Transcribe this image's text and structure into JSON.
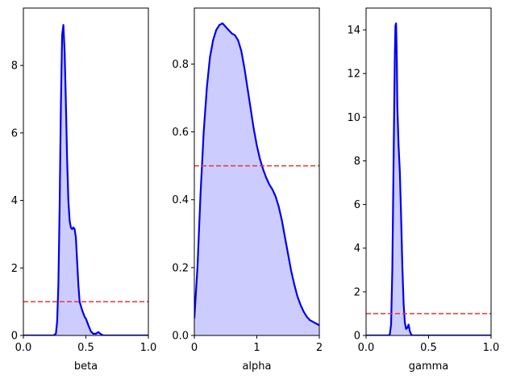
{
  "chart_data": [
    {
      "type": "area",
      "xlabel": "beta",
      "ylabel": "",
      "xlim": [
        0,
        1
      ],
      "ylim": [
        0,
        9.7
      ],
      "xticks": [
        0.0,
        0.5,
        1.0
      ],
      "xtick_labels": [
        "0.0",
        "0.5",
        "1.0"
      ],
      "yticks": [
        0,
        2,
        4,
        6,
        8
      ],
      "ytick_labels": [
        "0",
        "2",
        "4",
        "6",
        "8"
      ],
      "grid": false,
      "reference_line": 1.0,
      "series": [
        {
          "x": [
            0.0,
            0.2,
            0.24,
            0.26,
            0.27,
            0.28,
            0.29,
            0.3,
            0.31,
            0.32,
            0.33,
            0.34,
            0.35,
            0.36,
            0.37,
            0.38,
            0.39,
            0.4,
            0.41,
            0.42,
            0.43,
            0.44,
            0.45,
            0.47,
            0.49,
            0.5,
            0.52,
            0.54,
            0.56,
            0.58,
            0.6,
            0.62,
            0.64,
            1.0
          ],
          "y": [
            0.0,
            0.0,
            0.0,
            0.05,
            0.4,
            1.5,
            3.8,
            6.8,
            8.9,
            9.2,
            8.4,
            6.9,
            5.2,
            4.0,
            3.4,
            3.2,
            3.15,
            3.2,
            3.15,
            2.9,
            2.2,
            1.5,
            1.0,
            0.75,
            0.55,
            0.5,
            0.3,
            0.12,
            0.05,
            0.05,
            0.1,
            0.04,
            0.0,
            0.0
          ]
        }
      ]
    },
    {
      "type": "area",
      "xlabel": "alpha",
      "ylabel": "",
      "xlim": [
        0,
        2
      ],
      "ylim": [
        0,
        0.965
      ],
      "xticks": [
        0,
        1,
        2
      ],
      "xtick_labels": [
        "0",
        "1",
        "2"
      ],
      "yticks": [
        0.0,
        0.2,
        0.4,
        0.6,
        0.8
      ],
      "ytick_labels": [
        "0.0",
        "0.2",
        "0.4",
        "0.6",
        "0.8"
      ],
      "grid": false,
      "reference_line": 0.5,
      "series": [
        {
          "x": [
            0.0,
            0.05,
            0.1,
            0.15,
            0.2,
            0.25,
            0.3,
            0.35,
            0.4,
            0.45,
            0.5,
            0.55,
            0.6,
            0.65,
            0.7,
            0.75,
            0.8,
            0.85,
            0.9,
            0.95,
            1.0,
            1.05,
            1.1,
            1.15,
            1.2,
            1.25,
            1.3,
            1.35,
            1.4,
            1.45,
            1.5,
            1.55,
            1.6,
            1.65,
            1.7,
            1.75,
            1.8,
            1.85,
            1.9,
            1.95,
            2.0
          ],
          "y": [
            0.05,
            0.2,
            0.42,
            0.6,
            0.73,
            0.82,
            0.87,
            0.9,
            0.915,
            0.92,
            0.91,
            0.9,
            0.89,
            0.885,
            0.87,
            0.84,
            0.79,
            0.73,
            0.67,
            0.61,
            0.56,
            0.52,
            0.49,
            0.465,
            0.445,
            0.43,
            0.41,
            0.38,
            0.34,
            0.29,
            0.24,
            0.19,
            0.15,
            0.115,
            0.09,
            0.07,
            0.055,
            0.045,
            0.04,
            0.035,
            0.03
          ]
        }
      ]
    },
    {
      "type": "area",
      "xlabel": "gamma",
      "ylabel": "",
      "xlim": [
        0,
        1
      ],
      "ylim": [
        0,
        15
      ],
      "xticks": [
        0.0,
        0.5,
        1.0
      ],
      "xtick_labels": [
        "0.0",
        "0.5",
        "1.0"
      ],
      "yticks": [
        0,
        2,
        4,
        6,
        8,
        10,
        12,
        14
      ],
      "ytick_labels": [
        "0",
        "2",
        "4",
        "6",
        "8",
        "10",
        "12",
        "14"
      ],
      "grid": false,
      "reference_line": 1.0,
      "series": [
        {
          "x": [
            0.0,
            0.18,
            0.19,
            0.2,
            0.21,
            0.22,
            0.23,
            0.235,
            0.24,
            0.245,
            0.25,
            0.26,
            0.27,
            0.28,
            0.29,
            0.3,
            0.31,
            0.32,
            0.33,
            0.34,
            0.35,
            0.36,
            0.37,
            1.0
          ],
          "y": [
            0.0,
            0.0,
            0.05,
            0.5,
            3.0,
            8.0,
            12.8,
            14.2,
            14.3,
            13.0,
            10.5,
            8.7,
            7.5,
            5.5,
            3.2,
            1.5,
            0.6,
            0.3,
            0.35,
            0.5,
            0.2,
            0.05,
            0.0,
            0.0
          ]
        }
      ]
    }
  ]
}
